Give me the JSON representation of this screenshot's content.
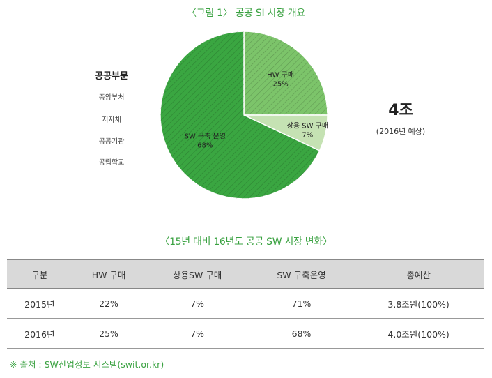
{
  "figure_title": "〈그림 1〉 공공 SI 시장 개요",
  "sector": {
    "title": "공공부문",
    "items": [
      "중앙부처",
      "지자체",
      "공공기관",
      "공립학교"
    ]
  },
  "total": {
    "value": "4조",
    "note": "(2016년 예상)"
  },
  "chart_data": {
    "type": "pie",
    "slices": [
      {
        "label": "HW 구매",
        "value": 25,
        "value_label": "25%",
        "color": "#7cc46a"
      },
      {
        "label": "상용 SW 구매",
        "value": 7,
        "value_label": "7%",
        "color": "#c5e2b3"
      },
      {
        "label": "SW 구축 운영",
        "value": 68,
        "value_label": "68%",
        "color": "#3aa641"
      }
    ],
    "start": "12 o'clock, clockwise",
    "legend": "none"
  },
  "table_title": "〈15년 대비 16년도 공공 SW 시장 변화〉",
  "table": {
    "headers": [
      "구분",
      "HW 구매",
      "상용SW 구매",
      "SW 구축운영",
      "총예산"
    ],
    "rows": [
      [
        "2015년",
        "22%",
        "7%",
        "71%",
        "3.8조원(100%)"
      ],
      [
        "2016년",
        "25%",
        "7%",
        "68%",
        "4.0조원(100%)"
      ]
    ]
  },
  "source": "※ 출처 : SW산업정보 시스템(swit.or.kr)"
}
